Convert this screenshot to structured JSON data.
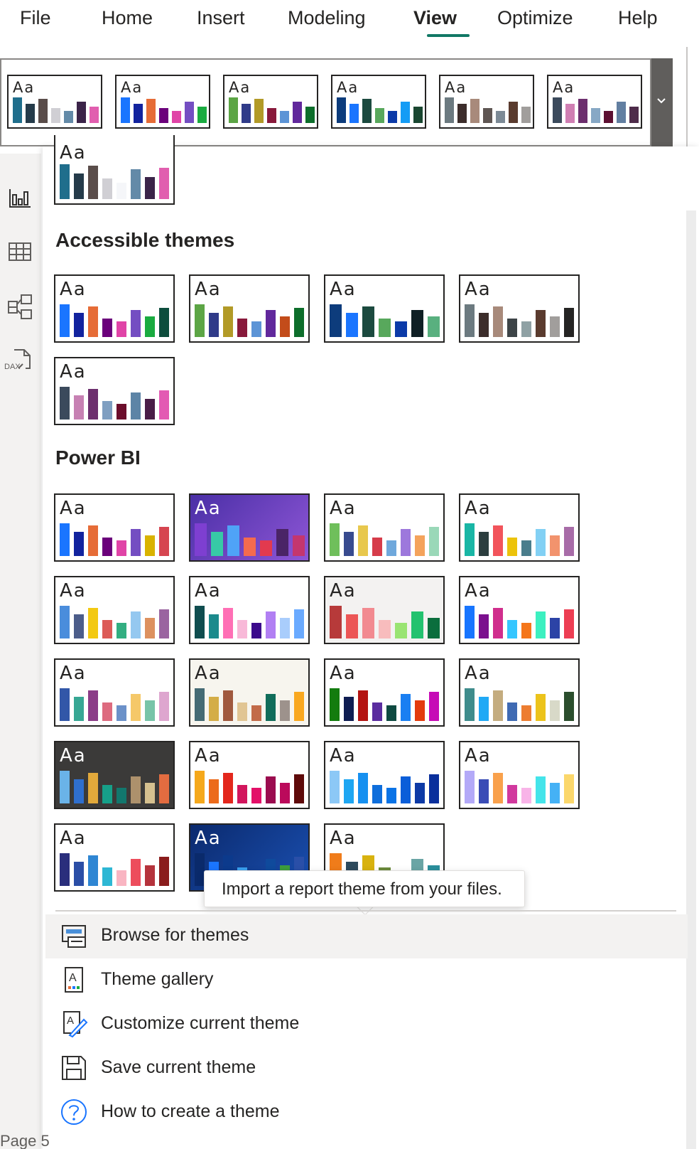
{
  "ribbon": {
    "tabs": [
      {
        "label": "File"
      },
      {
        "label": "Home"
      },
      {
        "label": "Insert"
      },
      {
        "label": "Modeling"
      },
      {
        "label": "View",
        "active": true
      },
      {
        "label": "Optimize"
      },
      {
        "label": "Help"
      }
    ],
    "theme_strip": [
      {
        "colors": [
          "#1f6e8c",
          "#253b4a",
          "#5a4d4a",
          "#d0cfd4",
          "#638aa8",
          "#3b2449",
          "#e15eaf"
        ]
      },
      {
        "colors": [
          "#1a75ff",
          "#12239e",
          "#e66c37",
          "#6b007b",
          "#e044a7",
          "#744ec2",
          "#1aab40"
        ]
      },
      {
        "colors": [
          "#5ca545",
          "#303b89",
          "#b29a27",
          "#88193b",
          "#5c94d6",
          "#61289c",
          "#0d6e2b"
        ]
      },
      {
        "colors": [
          "#0d3c7c",
          "#1a75ff",
          "#1c4a3f",
          "#58a85c",
          "#0b3aa8",
          "#149cf5",
          "#1a4731"
        ]
      },
      {
        "colors": [
          "#6c7a80",
          "#3c2d2b",
          "#a88a7b",
          "#5f5653",
          "#7c8a96",
          "#5a3b2e",
          "#a19e9c"
        ]
      },
      {
        "colors": [
          "#3b4a5c",
          "#d07fb3",
          "#6d2f6e",
          "#87a8c5",
          "#5d0f31",
          "#627fa1",
          "#4e2c4a"
        ]
      }
    ],
    "scroll_icon": "chevron-down-icon"
  },
  "rail": {
    "icons": [
      "report-view-icon",
      "table-view-icon",
      "model-view-icon",
      "dax-query-view-icon"
    ],
    "dax_label": "DAX"
  },
  "panel": {
    "this_report_theme": {
      "colors": [
        "#1f6e8c",
        "#253b4a",
        "#5a4d4a",
        "#d0cfd4",
        "#f5f6f9",
        "#638aa8",
        "#3b2449",
        "#e15eaf"
      ]
    },
    "sections": [
      {
        "title": "Accessible themes",
        "themes": [
          {
            "colors": [
              "#1a75ff",
              "#12239e",
              "#e66c37",
              "#6b007b",
              "#e044a7",
              "#744ec2",
              "#1aab40",
              "#0d4d3d"
            ]
          },
          {
            "colors": [
              "#5ca545",
              "#303b89",
              "#b29a27",
              "#88193b",
              "#5c94d6",
              "#61289c",
              "#c34c1a",
              "#0d6e2b"
            ]
          },
          {
            "colors": [
              "#0d3c7c",
              "#1a75ff",
              "#1c4a3f",
              "#58a85c",
              "#0b3aa8",
              "#0f1f24",
              "#59b07f"
            ]
          },
          {
            "colors": [
              "#6c7a80",
              "#3c2d2b",
              "#a88a7b",
              "#3d4447",
              "#8fa1a4",
              "#5a3b2e",
              "#a19e9c",
              "#252423"
            ]
          },
          {
            "colors": [
              "#3b4a5c",
              "#c781b3",
              "#6d2f6e",
              "#7f9fc1",
              "#6b0d2b",
              "#5d84a6",
              "#4a1d47",
              "#e35ab3"
            ]
          }
        ]
      },
      {
        "title": "Power BI",
        "themes": [
          {
            "colors": [
              "#1a75ff",
              "#12239e",
              "#e66c37",
              "#6b007b",
              "#e044a7",
              "#744ec2",
              "#d9b300",
              "#d64550"
            ],
            "bg": "#ffffff",
            "text": "#252423"
          },
          {
            "colors": [
              "#7e3fd1",
              "#37c9a6",
              "#4fa3f7",
              "#f46b4e",
              "#e23a4f",
              "#4a2466",
              "#c4366e"
            ],
            "bg": "#6b3fb8",
            "text": "#ffffff"
          },
          {
            "colors": [
              "#6fbf5b",
              "#384b8f",
              "#e8c84d",
              "#d63c4a",
              "#6fa8dc",
              "#9d78dc",
              "#f4a35c",
              "#9ad8b8"
            ],
            "bg": "#ffffff",
            "text": "#252423"
          },
          {
            "colors": [
              "#19b6a5",
              "#2c3e3f",
              "#f2545b",
              "#ecc30b",
              "#4a7d8c",
              "#82d0f4",
              "#f2936d",
              "#a86ca8"
            ],
            "bg": "#ffffff",
            "text": "#252423"
          },
          {
            "colors": [
              "#4a8ddc",
              "#4c5d8a",
              "#f3c911",
              "#dc5b57",
              "#33ae81",
              "#95c8f0",
              "#dd915f",
              "#9a64a0"
            ],
            "bg": "#ffffff",
            "text": "#252423"
          },
          {
            "colors": [
              "#0f4d4f",
              "#1b8a8c",
              "#ff6fb5",
              "#f8b9d8",
              "#3b0a8c",
              "#b17ff3",
              "#a9cdfc",
              "#6aaaff"
            ],
            "bg": "#ffffff",
            "text": "#252423"
          },
          {
            "colors": [
              "#b73a3a",
              "#ec5656",
              "#f28a90",
              "#f8bcbd",
              "#99e472",
              "#23c26f",
              "#0b6e3d"
            ],
            "bg": "#f3f2f1",
            "text": "#252423"
          },
          {
            "colors": [
              "#1775ff",
              "#7b108e",
              "#d02e8d",
              "#34c6ff",
              "#f5761a",
              "#3cf0c0",
              "#2c43a6",
              "#ed3e53"
            ],
            "bg": "#ffffff",
            "text": "#252423"
          },
          {
            "colors": [
              "#3257a8",
              "#37a794",
              "#8b3d88",
              "#dd6b7f",
              "#6b91c9",
              "#f5c869",
              "#77c4a8",
              "#dea6cf"
            ],
            "bg": "#ffffff",
            "text": "#252423"
          },
          {
            "colors": [
              "#456b74",
              "#d4ad47",
              "#a0593e",
              "#e1c593",
              "#c26b49",
              "#116d5a",
              "#9d928c",
              "#f9a81f"
            ],
            "bg": "#f7f5ee",
            "text": "#252423"
          },
          {
            "colors": [
              "#137c0e",
              "#0f1d52",
              "#b41412",
              "#5a2d9f",
              "#0e4a41",
              "#1a7ff2",
              "#e33b0e",
              "#c60bb6"
            ],
            "bg": "#ffffff",
            "text": "#252423"
          },
          {
            "colors": [
              "#3f8c8c",
              "#20a9f5",
              "#c4ac7f",
              "#3f6ab3",
              "#ed7d31",
              "#ecc31b",
              "#d8d9c8",
              "#2b4e2d"
            ],
            "bg": "#ffffff",
            "text": "#252423"
          },
          {
            "colors": [
              "#6ab3e8",
              "#2f6fce",
              "#e2a93b",
              "#16a089",
              "#12776d",
              "#ad916c",
              "#d5c08f",
              "#e36c40"
            ],
            "bg": "#3b3a39",
            "text": "#ffffff"
          },
          {
            "colors": [
              "#f5a81b",
              "#ec6b1b",
              "#e3271c",
              "#d2165d",
              "#e31068",
              "#9b0c4f",
              "#bb0a5b",
              "#5f0a0a"
            ],
            "bg": "#ffffff",
            "text": "#252423"
          },
          {
            "colors": [
              "#8cc8f6",
              "#1ea6f2",
              "#1690f0",
              "#0f6edb",
              "#0a73e6",
              "#0b5ed9",
              "#0d3aa6",
              "#0a2f9c"
            ],
            "bg": "#ffffff",
            "text": "#252423"
          },
          {
            "colors": [
              "#b3a9f8",
              "#3a4cb6",
              "#f9a14c",
              "#d1399e",
              "#f8b4e8",
              "#44e4ea",
              "#45b1f5",
              "#fbd76b"
            ],
            "bg": "#ffffff",
            "text": "#252423"
          },
          {
            "colors": [
              "#2a2e7c",
              "#2b4ea6",
              "#2f86d3",
              "#2eb7d4",
              "#f9b5c2",
              "#ed4d5c",
              "#b5333c",
              "#8a1c1c"
            ],
            "bg": "#ffffff",
            "text": "#252423"
          },
          {
            "colors": [
              "#0a2a6b",
              "#1a75ff",
              "#0c3a8c",
              "#3aa0f0",
              "#1aa86f",
              "#0f4a9c",
              "#3c9c3c",
              "#2a4fa8"
            ],
            "bg": "#123b8a",
            "text": "#ffffff"
          },
          {
            "colors": [
              "#f07c1a",
              "#2d4a5c",
              "#d8b20f",
              "#6b8a3c",
              "#9fc8c8",
              "#6aa5a5",
              "#2a8f9c"
            ],
            "bg": "#ffffff",
            "text": "#252423"
          }
        ]
      }
    ],
    "tooltip": "Import a report theme from your files.",
    "menu": [
      {
        "label": "Browse for themes",
        "icon": "browse-themes-icon",
        "hover": true
      },
      {
        "label": "Theme gallery",
        "icon": "theme-gallery-icon"
      },
      {
        "label": "Customize current theme",
        "icon": "customize-theme-icon"
      },
      {
        "label": "Save current theme",
        "icon": "save-theme-icon"
      },
      {
        "label": "How to create a theme",
        "icon": "help-icon"
      }
    ]
  },
  "footer": {
    "page_label": "Page 5"
  }
}
